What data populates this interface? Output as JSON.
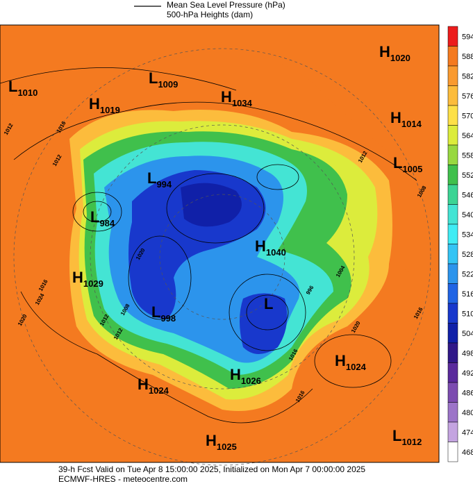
{
  "legend": {
    "line1": "Mean Sea Level Pressure (hPa)",
    "line2": "500-hPa Heights (dam)"
  },
  "colorbar": [
    {
      "label": 594,
      "color": "#ec1c1c"
    },
    {
      "label": 588,
      "color": "#f47a20"
    },
    {
      "label": 582,
      "color": "#f99a30"
    },
    {
      "label": 576,
      "color": "#fcbc3c"
    },
    {
      "label": 570,
      "color": "#fde048"
    },
    {
      "label": 564,
      "color": "#dcec3c"
    },
    {
      "label": 558,
      "color": "#98d840"
    },
    {
      "label": 552,
      "color": "#40c04c"
    },
    {
      "label": 546,
      "color": "#3cd494"
    },
    {
      "label": 540,
      "color": "#44e4d4"
    },
    {
      "label": 534,
      "color": "#40ecf4"
    },
    {
      "label": 528,
      "color": "#34c4f4"
    },
    {
      "label": 522,
      "color": "#2c94ec"
    },
    {
      "label": 516,
      "color": "#2064e4"
    },
    {
      "label": 510,
      "color": "#1838cc"
    },
    {
      "label": 504,
      "color": "#1020a8"
    },
    {
      "label": 498,
      "color": "#301888"
    },
    {
      "label": 492,
      "color": "#5a2a9c"
    },
    {
      "label": 486,
      "color": "#7c4cb0"
    },
    {
      "label": 480,
      "color": "#9c74c8"
    },
    {
      "label": 474,
      "color": "#c4a4e0"
    },
    {
      "label": 468,
      "color": "#ffffff"
    }
  ],
  "pressure_centers": [
    {
      "letter": "L",
      "value": "1010"
    },
    {
      "letter": "H",
      "value": "1019"
    },
    {
      "letter": "L",
      "value": "1009"
    },
    {
      "letter": "H",
      "value": "1034"
    },
    {
      "letter": "H",
      "value": "1020"
    },
    {
      "letter": "H",
      "value": "1014"
    },
    {
      "letter": "L",
      "value": "1005"
    },
    {
      "letter": "L",
      "value": "994"
    },
    {
      "letter": "L",
      "value": "984"
    },
    {
      "letter": "H",
      "value": "1040"
    },
    {
      "letter": "H",
      "value": "1029"
    },
    {
      "letter": "L",
      "value": "998"
    },
    {
      "letter": "L"
    },
    {
      "letter": "H",
      "value": "1026"
    },
    {
      "letter": "H",
      "value": "1024"
    },
    {
      "letter": "H",
      "value": "1024"
    },
    {
      "letter": "H",
      "value": "1025"
    },
    {
      "letter": "L",
      "value": "1012"
    }
  ],
  "isobar_labels": [
    "1012",
    "1016",
    "1012",
    "1016",
    "1012",
    "1008",
    "1020",
    "1024",
    "1020",
    "1016",
    "1012",
    "1008",
    "1004",
    "996",
    "1016",
    "1020",
    "1016",
    "1012"
  ],
  "footer": {
    "line1": "39-h Fcst Valid on Tue Apr  8 15:00:00 2025, Initialized on Mon Apr  7 00:00:00 2025",
    "line2": "ECMWF-HRES - meteocentre.com"
  }
}
